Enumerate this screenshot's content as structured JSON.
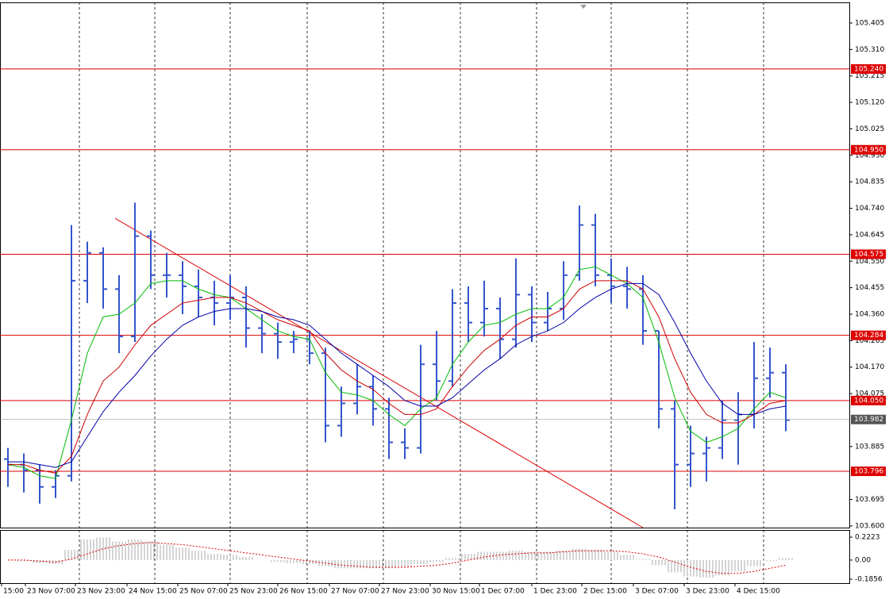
{
  "chart_data": {
    "type": "candlestick",
    "xlim": [
      -0.5,
      53
    ],
    "ylim": [
      103.594,
      105.479
    ],
    "yticks": [
      105.405,
      {
        "value": 105.31,
        "label": "105.310"
      },
      105.215,
      {
        "value": 105.12,
        "label": "105.120"
      },
      105.025,
      {
        "value": 104.93,
        "label": "104.930"
      },
      104.835,
      {
        "value": 104.74,
        "label": "104.740"
      },
      104.645,
      {
        "value": 104.55,
        "label": "104.550"
      },
      104.455,
      {
        "value": 104.36,
        "label": "104.360"
      },
      104.265,
      {
        "value": 104.17,
        "label": "104.170"
      },
      104.075,
      103.885,
      103.695,
      {
        "value": 103.6,
        "label": "103.600"
      }
    ],
    "xticks": [
      {
        "value": -0.4,
        "label": "15:00"
      },
      {
        "value": 1.1,
        "label": "23 Nov 07:00"
      },
      {
        "value": 4.25,
        "label": "23 Nov 23:00"
      },
      {
        "value": 7.5,
        "label": "24 Nov 15:00"
      },
      {
        "value": 10.7,
        "label": "25 Nov 07:00"
      },
      {
        "value": 13.85,
        "label": "25 Nov 23:00"
      },
      {
        "value": 17,
        "label": "26 Nov 15:00"
      },
      {
        "value": 20.25,
        "label": "27 Nov 07:00"
      },
      {
        "value": 23.4,
        "label": "27 Nov 23:00"
      },
      {
        "value": 26.6,
        "label": "30 Nov 15:00"
      },
      {
        "value": 29.7,
        "label": "1 Dec 07:00"
      },
      {
        "value": 33,
        "label": "1 Dec 23:00"
      },
      {
        "value": 36.15,
        "label": "2 Dec 15:00"
      },
      {
        "value": 39.4,
        "label": "3 Dec 07:00"
      },
      {
        "value": 42.6,
        "label": "3 Dec 23:00"
      },
      {
        "value": 45.8,
        "label": "4 Dec 15:00"
      }
    ],
    "xgrid": [
      4.5,
      9.25,
      14,
      18.85,
      23.65,
      28.5,
      33.3,
      38,
      42.8,
      47.6
    ],
    "color": "#3355cc",
    "open": [
      103.84,
      103.82,
      103.8,
      103.74,
      103.78,
      104.48,
      104.58,
      104.45,
      104.28,
      104.64,
      104.5,
      104.5,
      104.46,
      104.42,
      104.4,
      104.42,
      104.31,
      104.29,
      104.26,
      104.27,
      104.22,
      103.96,
      104.04,
      104.1,
      104.02,
      103.9,
      103.88,
      104.18,
      104.12,
      104.4,
      104.33,
      104.38,
      104.27,
      104.43,
      104.33,
      104.38,
      104.5,
      104.68,
      104.5,
      104.46,
      104.45,
      104.3,
      104.02,
      103.82,
      103.86,
      103.88,
      103.98,
      104.0,
      104.13,
      104.15
    ],
    "high": [
      103.88,
      103.86,
      103.82,
      103.8,
      104.68,
      104.62,
      104.6,
      104.5,
      104.76,
      104.66,
      104.58,
      104.55,
      104.52,
      104.48,
      104.5,
      104.46,
      104.36,
      104.33,
      104.3,
      104.3,
      104.24,
      104.1,
      104.18,
      104.14,
      104.06,
      103.95,
      104.25,
      104.3,
      104.45,
      104.46,
      104.48,
      104.42,
      104.56,
      104.46,
      104.44,
      104.55,
      104.75,
      104.72,
      104.56,
      104.53,
      104.5,
      104.3,
      104.05,
      103.96,
      103.92,
      104.05,
      104.08,
      104.26,
      104.24,
      104.18
    ],
    "low": [
      103.74,
      103.72,
      103.68,
      103.7,
      103.76,
      104.4,
      104.38,
      104.22,
      104.26,
      104.45,
      104.42,
      104.36,
      104.35,
      104.32,
      104.34,
      104.24,
      104.22,
      104.2,
      104.22,
      104.18,
      103.9,
      103.92,
      104.0,
      103.96,
      103.84,
      103.84,
      103.86,
      104.05,
      104.1,
      104.26,
      104.28,
      104.2,
      104.24,
      104.26,
      104.3,
      104.34,
      104.48,
      104.46,
      104.4,
      104.38,
      104.25,
      103.95,
      103.66,
      103.74,
      103.76,
      103.84,
      103.82,
      103.95,
      104.06,
      103.94
    ],
    "close": [
      103.82,
      103.8,
      103.74,
      103.78,
      104.48,
      104.58,
      104.45,
      104.28,
      104.64,
      104.5,
      104.5,
      104.46,
      104.42,
      104.4,
      104.42,
      104.31,
      104.29,
      104.26,
      104.27,
      104.22,
      103.96,
      104.04,
      104.1,
      104.02,
      103.9,
      103.88,
      104.18,
      104.12,
      104.4,
      104.33,
      104.38,
      104.27,
      104.43,
      104.33,
      104.38,
      104.5,
      104.68,
      104.5,
      104.46,
      104.45,
      104.3,
      104.02,
      103.82,
      103.86,
      103.88,
      103.98,
      104.0,
      104.13,
      104.15,
      103.98
    ],
    "series": [
      {
        "color": "#00bb00",
        "values": [
          103.82,
          103.81,
          103.78,
          103.77,
          103.98,
          104.22,
          104.35,
          104.36,
          104.4,
          104.47,
          104.48,
          104.48,
          104.45,
          104.43,
          104.42,
          104.38,
          104.34,
          104.3,
          104.28,
          104.27,
          104.15,
          104.08,
          104.07,
          104.05,
          104.0,
          103.96,
          104.02,
          104.06,
          104.18,
          104.26,
          104.32,
          104.33,
          104.36,
          104.38,
          104.38,
          104.42,
          104.52,
          104.53,
          104.5,
          104.47,
          104.42,
          104.26,
          104.06,
          103.94,
          103.9,
          103.92,
          103.95,
          104.02,
          104.08,
          104.06
        ]
      },
      {
        "color": "#cc0000",
        "values": [
          103.82,
          103.82,
          103.8,
          103.79,
          103.85,
          104.0,
          104.12,
          104.17,
          104.25,
          104.32,
          104.36,
          104.4,
          104.41,
          104.42,
          104.42,
          104.4,
          104.37,
          104.34,
          104.32,
          104.3,
          104.22,
          104.16,
          104.12,
          104.09,
          104.04,
          104.0,
          104.0,
          104.02,
          104.1,
          104.17,
          104.23,
          104.27,
          104.32,
          104.35,
          104.35,
          104.38,
          104.45,
          104.48,
          104.48,
          104.48,
          104.45,
          104.35,
          104.2,
          104.08,
          104.0,
          103.97,
          103.97,
          104.0,
          104.04,
          104.05
        ]
      },
      {
        "color": "#0000aa",
        "values": [
          103.83,
          103.83,
          103.82,
          103.81,
          103.83,
          103.92,
          104.01,
          104.08,
          104.14,
          104.21,
          104.27,
          104.32,
          104.35,
          104.37,
          104.38,
          104.38,
          104.37,
          104.35,
          104.34,
          104.32,
          104.27,
          104.22,
          104.18,
          104.14,
          104.1,
          104.05,
          104.03,
          104.03,
          104.06,
          104.11,
          104.16,
          104.2,
          104.25,
          104.28,
          104.3,
          104.33,
          104.38,
          104.42,
          104.45,
          104.47,
          104.47,
          104.43,
          104.33,
          104.22,
          104.12,
          104.04,
          104.0,
          104.0,
          104.02,
          104.03
        ]
      }
    ],
    "trendline": {
      "color": "#dd0000",
      "x": [
        6.75,
        40
      ],
      "y": [
        104.704,
        103.594
      ]
    },
    "levels": [
      {
        "value": 105.24,
        "label": "105.240"
      },
      {
        "value": 104.95,
        "label": "104.950"
      },
      104.575,
      104.284,
      {
        "value": 104.05,
        "label": "104.050"
      },
      103.796
    ],
    "level_color": "#dd0000",
    "last_price": 103.982,
    "oscillator": {
      "ylim": [
        -0.224,
        0.292
      ],
      "yticks": [
        0.2223,
        {
          "value": 0,
          "label": "0.00"
        },
        -0.1856
      ],
      "hist_color": "#aaaaaa",
      "signal_color": "#dd0000",
      "values": [
        0.0,
        -0.01,
        -0.03,
        -0.04,
        0.1,
        0.2,
        0.22,
        0.18,
        0.2,
        0.18,
        0.15,
        0.12,
        0.09,
        0.06,
        0.05,
        0.03,
        0.0,
        -0.02,
        -0.03,
        -0.04,
        -0.06,
        -0.08,
        -0.08,
        -0.08,
        -0.08,
        -0.07,
        -0.04,
        -0.02,
        0.02,
        0.06,
        0.08,
        0.08,
        0.09,
        0.08,
        0.08,
        0.09,
        0.11,
        0.1,
        0.08,
        0.05,
        0.01,
        -0.05,
        -0.12,
        -0.16,
        -0.17,
        -0.15,
        -0.11,
        -0.06,
        -0.01,
        0.02
      ],
      "signal": [
        0.0,
        0.0,
        -0.01,
        -0.02,
        0.01,
        0.06,
        0.11,
        0.14,
        0.16,
        0.17,
        0.16,
        0.15,
        0.13,
        0.11,
        0.09,
        0.07,
        0.05,
        0.03,
        0.01,
        -0.01,
        -0.03,
        -0.05,
        -0.06,
        -0.07,
        -0.07,
        -0.07,
        -0.06,
        -0.05,
        -0.03,
        0.0,
        0.03,
        0.05,
        0.06,
        0.07,
        0.07,
        0.08,
        0.09,
        0.09,
        0.09,
        0.08,
        0.06,
        0.03,
        -0.02,
        -0.07,
        -0.11,
        -0.13,
        -0.13,
        -0.11,
        -0.08,
        -0.05
      ]
    }
  }
}
